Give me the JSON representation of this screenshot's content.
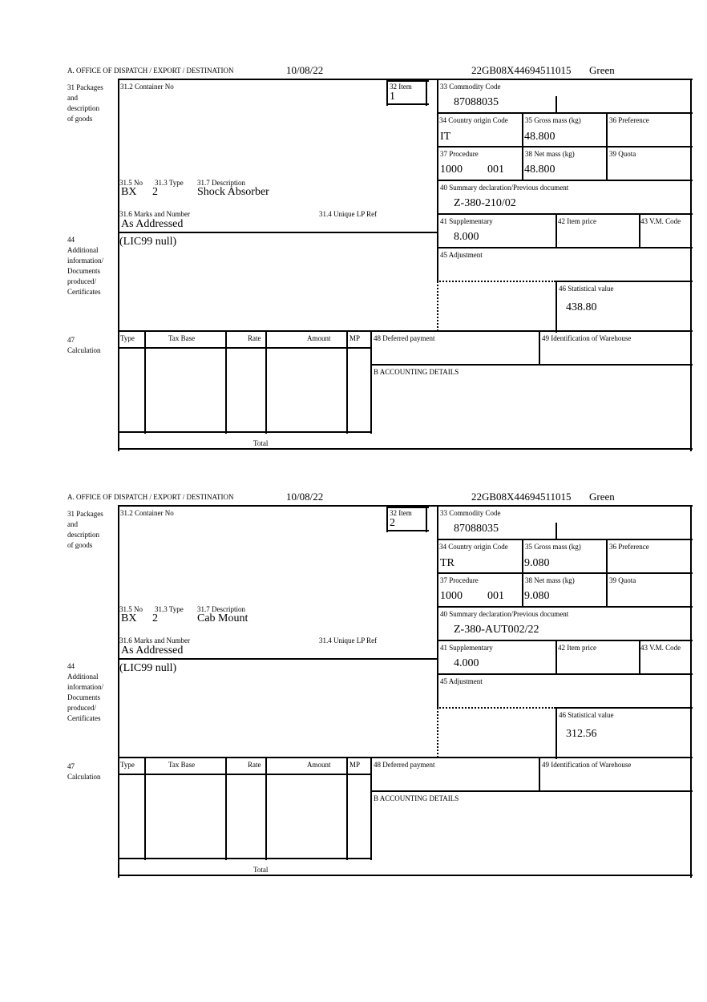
{
  "labels": {
    "office": "A.  OFFICE OF DISPATCH / EXPORT / DESTINATION",
    "packages": [
      "31 Packages",
      "and",
      "description",
      "of goods"
    ],
    "container_no": "31.2 Container No",
    "item": "32 Item",
    "no": "31.5 No",
    "type": "31.3 Type",
    "description": "31.7 Description",
    "marks": "31.6 Marks and Number",
    "unique_lp": "31.4 Unique LP Ref",
    "additional": [
      "44",
      "Additional",
      "information/",
      "Documents",
      "produced/",
      "Certificates"
    ],
    "commodity_code": "33 Commodity Code",
    "country_origin": "34 Country origin Code",
    "gross_mass": "35 Gross mass (kg)",
    "preference": "36 Preference",
    "procedure": "37 Procedure",
    "net_mass": "38 Net mass (kg)",
    "quota": "39 Quota",
    "summary_decl": "40 Summary declaration/Previous document",
    "supplementary": "41 Supplementary",
    "item_price": "42 Item price",
    "vm_code": "43 V.M. Code",
    "adjustment": "45 Adjustment",
    "statistical_value": "46 Statistical value",
    "calculation": [
      "47",
      "Calculation"
    ],
    "calc_cols": [
      "Type",
      "Tax Base",
      "Rate",
      "Amount",
      "MP"
    ],
    "total": "Total",
    "deferred_payment": "48 Deferred payment",
    "warehouse": "49 Identification of Warehouse",
    "accounting": "B ACCOUNTING DETAILS"
  },
  "forms": [
    {
      "date": "10/08/22",
      "reference": "22GB08X44694511015",
      "route": "Green",
      "item": "1",
      "no": "BX",
      "type": "2",
      "description": "Shock Absorber",
      "marks": "As Addressed",
      "additional_info": "(LIC99 null)",
      "commodity_code": "87088035",
      "country_origin": "IT",
      "gross_mass": "48.800",
      "procedure": "1000",
      "procedure_add": "001",
      "net_mass": "48.800",
      "summary_decl": "Z-380-210/02",
      "supplementary": "8.000",
      "statistical_value": "438.80"
    },
    {
      "date": "10/08/22",
      "reference": "22GB08X44694511015",
      "route": "Green",
      "item": "2",
      "no": "BX",
      "type": "2",
      "description": "Cab Mount",
      "marks": "As Addressed",
      "additional_info": "(LIC99 null)",
      "commodity_code": "87088035",
      "country_origin": "TR",
      "gross_mass": "9.080",
      "procedure": "1000",
      "procedure_add": "001",
      "net_mass": "9.080",
      "summary_decl": "Z-380-AUT002/22",
      "supplementary": "4.000",
      "statistical_value": "312.56"
    }
  ]
}
